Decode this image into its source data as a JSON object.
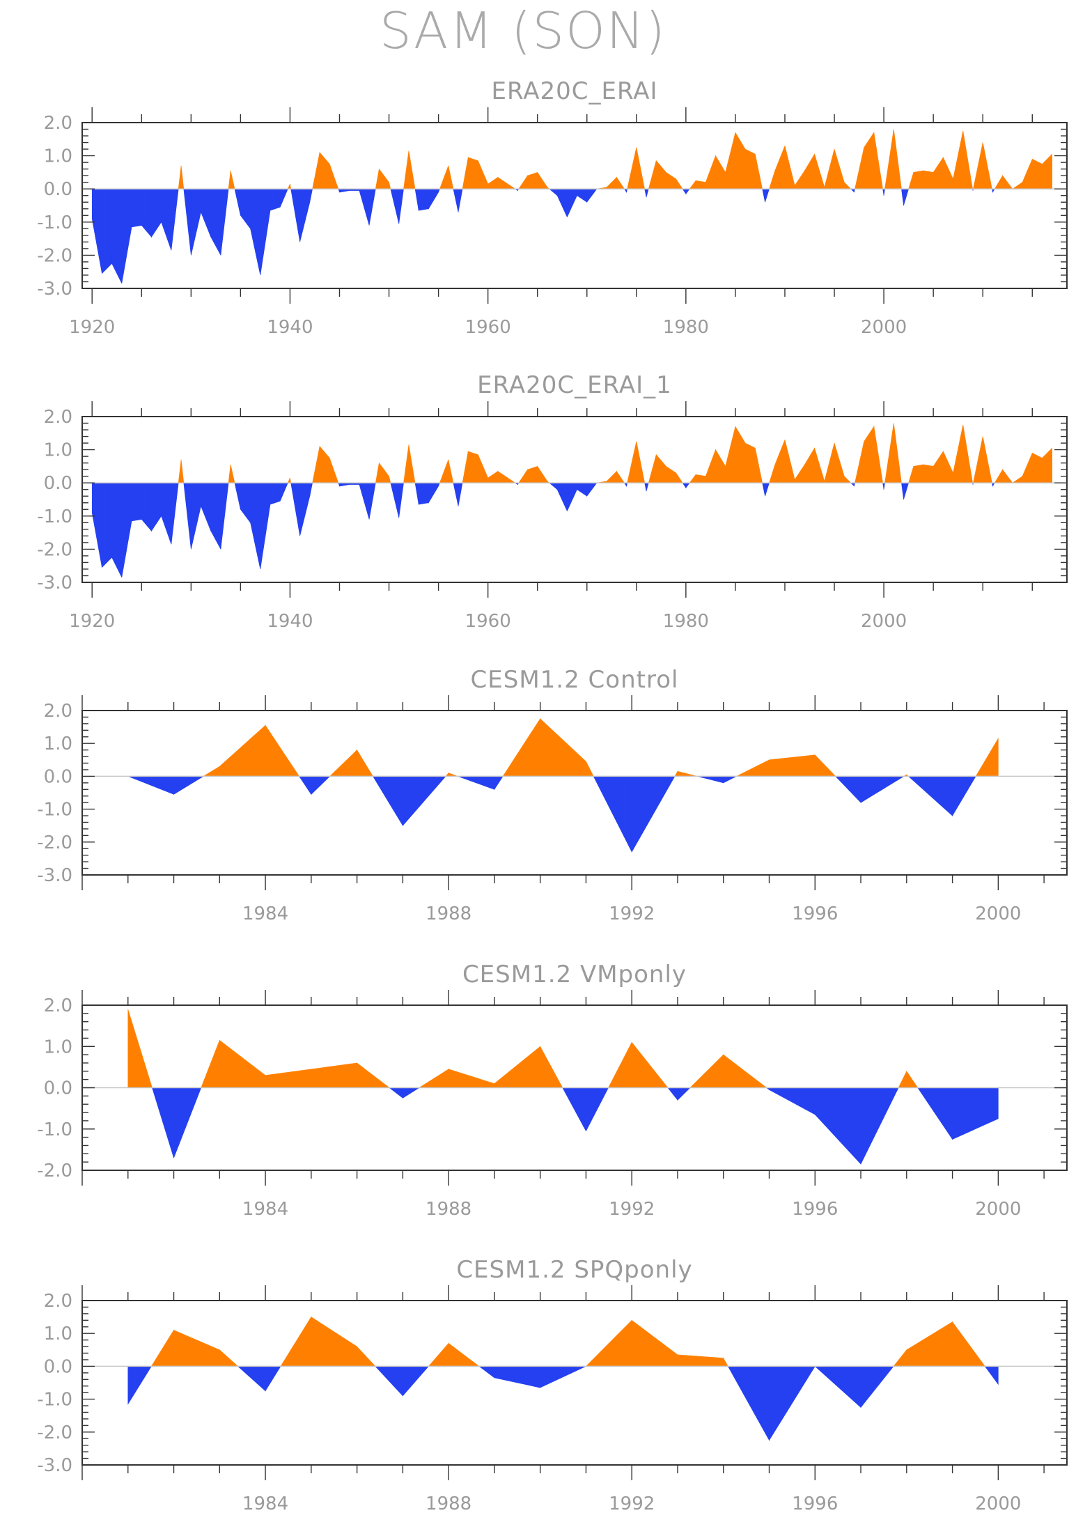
{
  "title": "SAM (SON)",
  "colors": {
    "positive": "#ff8000",
    "negative": "#2440f0",
    "axis": "#333333",
    "text": "#9a9a9a"
  },
  "chart_data": [
    {
      "type": "area",
      "title": "ERA20C_ERAI",
      "ylim": [
        -3.0,
        2.0
      ],
      "yticks": [
        "-3.0",
        "-2.0",
        "-1.0",
        "0.0",
        "1.0",
        "2.0"
      ],
      "xlim": [
        1919,
        2018.5
      ],
      "xticks": [
        "1920",
        "1940",
        "1960",
        "1980",
        "2000"
      ],
      "x": [
        1920,
        1921,
        1922,
        1923,
        1924,
        1925,
        1926,
        1927,
        1928,
        1929,
        1930,
        1931,
        1932,
        1933,
        1934,
        1935,
        1936,
        1937,
        1938,
        1939,
        1940,
        1941,
        1942,
        1943,
        1944,
        1945,
        1946,
        1947,
        1948,
        1949,
        1950,
        1951,
        1952,
        1953,
        1954,
        1955,
        1956,
        1957,
        1958,
        1959,
        1960,
        1961,
        1962,
        1963,
        1964,
        1965,
        1966,
        1967,
        1968,
        1969,
        1970,
        1971,
        1972,
        1973,
        1974,
        1975,
        1976,
        1977,
        1978,
        1979,
        1980,
        1981,
        1982,
        1983,
        1984,
        1985,
        1986,
        1987,
        1988,
        1989,
        1990,
        1991,
        1992,
        1993,
        1994,
        1995,
        1996,
        1997,
        1998,
        1999,
        2000,
        2001,
        2002,
        2003,
        2004,
        2005,
        2006,
        2007,
        2008,
        2009,
        2010,
        2011,
        2012,
        2013,
        2014,
        2015,
        2016,
        2017
      ],
      "values": [
        -0.9,
        -2.55,
        -2.25,
        -2.85,
        -1.15,
        -1.1,
        -1.45,
        -1.0,
        -1.85,
        0.7,
        -2.0,
        -0.7,
        -1.45,
        -2.0,
        0.55,
        -0.8,
        -1.2,
        -2.6,
        -0.65,
        -0.55,
        0.15,
        -1.6,
        -0.4,
        1.1,
        0.75,
        -0.1,
        -0.05,
        -0.05,
        -1.1,
        0.6,
        0.2,
        -1.05,
        1.15,
        -0.65,
        -0.6,
        -0.1,
        0.7,
        -0.7,
        0.95,
        0.85,
        0.15,
        0.35,
        0.15,
        -0.05,
        0.4,
        0.5,
        0.05,
        -0.2,
        -0.85,
        -0.2,
        -0.4,
        0.0,
        0.05,
        0.35,
        -0.1,
        1.25,
        -0.25,
        0.85,
        0.5,
        0.3,
        -0.15,
        0.25,
        0.2,
        1.0,
        0.5,
        1.7,
        1.2,
        1.05,
        -0.4,
        0.55,
        1.3,
        0.1,
        0.55,
        1.05,
        0.05,
        1.2,
        0.2,
        -0.1,
        1.25,
        1.7,
        -0.2,
        1.8,
        -0.5,
        0.5,
        0.55,
        0.5,
        0.95,
        0.3,
        1.75,
        -0.05,
        1.4,
        -0.1,
        0.4,
        0.0,
        0.2,
        0.9,
        0.75,
        1.05
      ]
    },
    {
      "type": "area",
      "title": "ERA20C_ERAI_1",
      "ylim": [
        -3.0,
        2.0
      ],
      "yticks": [
        "-3.0",
        "-2.0",
        "-1.0",
        "0.0",
        "1.0",
        "2.0"
      ],
      "xlim": [
        1919,
        2018.5
      ],
      "xticks": [
        "1920",
        "1940",
        "1960",
        "1980",
        "2000"
      ],
      "x": [
        1920,
        1921,
        1922,
        1923,
        1924,
        1925,
        1926,
        1927,
        1928,
        1929,
        1930,
        1931,
        1932,
        1933,
        1934,
        1935,
        1936,
        1937,
        1938,
        1939,
        1940,
        1941,
        1942,
        1943,
        1944,
        1945,
        1946,
        1947,
        1948,
        1949,
        1950,
        1951,
        1952,
        1953,
        1954,
        1955,
        1956,
        1957,
        1958,
        1959,
        1960,
        1961,
        1962,
        1963,
        1964,
        1965,
        1966,
        1967,
        1968,
        1969,
        1970,
        1971,
        1972,
        1973,
        1974,
        1975,
        1976,
        1977,
        1978,
        1979,
        1980,
        1981,
        1982,
        1983,
        1984,
        1985,
        1986,
        1987,
        1988,
        1989,
        1990,
        1991,
        1992,
        1993,
        1994,
        1995,
        1996,
        1997,
        1998,
        1999,
        2000,
        2001,
        2002,
        2003,
        2004,
        2005,
        2006,
        2007,
        2008,
        2009,
        2010,
        2011,
        2012,
        2013,
        2014,
        2015,
        2016,
        2017
      ],
      "values": [
        -0.9,
        -2.55,
        -2.25,
        -2.85,
        -1.15,
        -1.1,
        -1.45,
        -1.0,
        -1.85,
        0.7,
        -2.0,
        -0.7,
        -1.45,
        -2.0,
        0.55,
        -0.8,
        -1.2,
        -2.6,
        -0.65,
        -0.55,
        0.15,
        -1.6,
        -0.4,
        1.1,
        0.75,
        -0.1,
        -0.05,
        -0.05,
        -1.1,
        0.6,
        0.2,
        -1.05,
        1.15,
        -0.65,
        -0.6,
        -0.1,
        0.7,
        -0.7,
        0.95,
        0.85,
        0.15,
        0.35,
        0.15,
        -0.05,
        0.4,
        0.5,
        0.05,
        -0.2,
        -0.85,
        -0.2,
        -0.4,
        0.0,
        0.05,
        0.35,
        -0.1,
        1.25,
        -0.25,
        0.85,
        0.5,
        0.3,
        -0.15,
        0.25,
        0.2,
        1.0,
        0.5,
        1.7,
        1.2,
        1.05,
        -0.4,
        0.55,
        1.3,
        0.1,
        0.55,
        1.05,
        0.05,
        1.2,
        0.2,
        -0.1,
        1.25,
        1.7,
        -0.2,
        1.8,
        -0.5,
        0.5,
        0.55,
        0.5,
        0.95,
        0.3,
        1.75,
        -0.05,
        1.4,
        -0.1,
        0.4,
        0.0,
        0.2,
        0.9,
        0.75,
        1.05
      ]
    },
    {
      "type": "area",
      "title": "CESM1.2 Control",
      "ylim": [
        -3.0,
        2.0
      ],
      "yticks": [
        "-3.0",
        "-2.0",
        "-1.0",
        "0.0",
        "1.0",
        "2.0"
      ],
      "xlim": [
        1980,
        2001.5
      ],
      "xticks": [
        "1984",
        "1988",
        "1992",
        "1996",
        "2000"
      ],
      "x": [
        1981,
        1982,
        1983,
        1984,
        1985,
        1986,
        1987,
        1988,
        1989,
        1990,
        1991,
        1992,
        1993,
        1994,
        1995,
        1996,
        1997,
        1998,
        1999,
        2000
      ],
      "values": [
        0.0,
        -0.55,
        0.3,
        1.55,
        -0.55,
        0.8,
        -1.5,
        0.1,
        -0.4,
        1.75,
        0.45,
        -2.3,
        0.15,
        -0.2,
        0.5,
        0.65,
        -0.8,
        0.05,
        -1.2,
        1.15
      ]
    },
    {
      "type": "area",
      "title": "CESM1.2 VMponly",
      "ylim": [
        -2.0,
        2.0
      ],
      "yticks": [
        "-2.0",
        "-1.0",
        "0.0",
        "1.0",
        "2.0"
      ],
      "xlim": [
        1980,
        2001.5
      ],
      "xticks": [
        "1984",
        "1988",
        "1992",
        "1996",
        "2000"
      ],
      "x": [
        1981,
        1982,
        1983,
        1984,
        1985,
        1986,
        1987,
        1988,
        1989,
        1990,
        1991,
        1992,
        1993,
        1994,
        1995,
        1996,
        1997,
        1998,
        1999,
        2000
      ],
      "values": [
        1.9,
        -1.7,
        1.15,
        0.3,
        0.45,
        0.6,
        -0.25,
        0.45,
        0.1,
        1.0,
        -1.05,
        1.1,
        -0.3,
        0.8,
        -0.05,
        -0.65,
        -1.85,
        0.4,
        -1.25,
        -0.75
      ]
    },
    {
      "type": "area",
      "title": "CESM1.2 SPQponly",
      "ylim": [
        -3.0,
        2.0
      ],
      "yticks": [
        "-3.0",
        "-2.0",
        "-1.0",
        "0.0",
        "1.0",
        "2.0"
      ],
      "xlim": [
        1980,
        2001.5
      ],
      "xticks": [
        "1984",
        "1988",
        "1992",
        "1996",
        "2000"
      ],
      "x": [
        1981,
        1982,
        1983,
        1984,
        1985,
        1986,
        1987,
        1988,
        1989,
        1990,
        1991,
        1992,
        1993,
        1994,
        1995,
        1996,
        1997,
        1998,
        1999,
        2000
      ],
      "values": [
        -1.15,
        1.1,
        0.5,
        -0.75,
        1.5,
        0.6,
        -0.9,
        0.7,
        -0.35,
        -0.65,
        0.0,
        1.4,
        0.35,
        0.25,
        -2.25,
        0.0,
        -1.25,
        0.5,
        1.35,
        -0.55
      ]
    }
  ]
}
